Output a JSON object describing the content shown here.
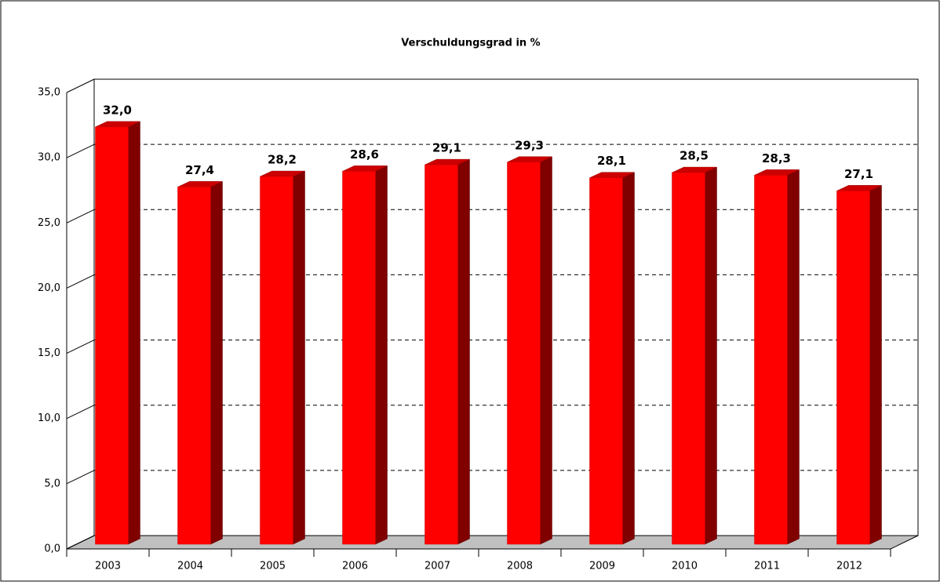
{
  "chart_data": {
    "type": "bar",
    "title": "Verschuldungsgrad in %",
    "categories": [
      "2003",
      "2004",
      "2005",
      "2006",
      "2007",
      "2008",
      "2009",
      "2010",
      "2011",
      "2012"
    ],
    "values": [
      32.0,
      27.4,
      28.2,
      28.6,
      29.1,
      29.3,
      28.1,
      28.5,
      28.3,
      27.1
    ],
    "value_labels": [
      "32,0",
      "27,4",
      "28,2",
      "28,6",
      "29,1",
      "29,3",
      "28,1",
      "28,5",
      "28,3",
      "27,1"
    ],
    "color": "#ff0000",
    "ylim": [
      0,
      35
    ],
    "yticks": [
      {
        "value": 0,
        "label": "0,0"
      },
      {
        "value": 5,
        "label": "5,0"
      },
      {
        "value": 10,
        "label": "10,0"
      },
      {
        "value": 15,
        "label": "15,0"
      },
      {
        "value": 20,
        "label": "20,0"
      },
      {
        "value": 25,
        "label": "25,0"
      },
      {
        "value": 30,
        "label": "30,0"
      },
      {
        "value": 35,
        "label": "35,0"
      }
    ],
    "grid": true
  }
}
